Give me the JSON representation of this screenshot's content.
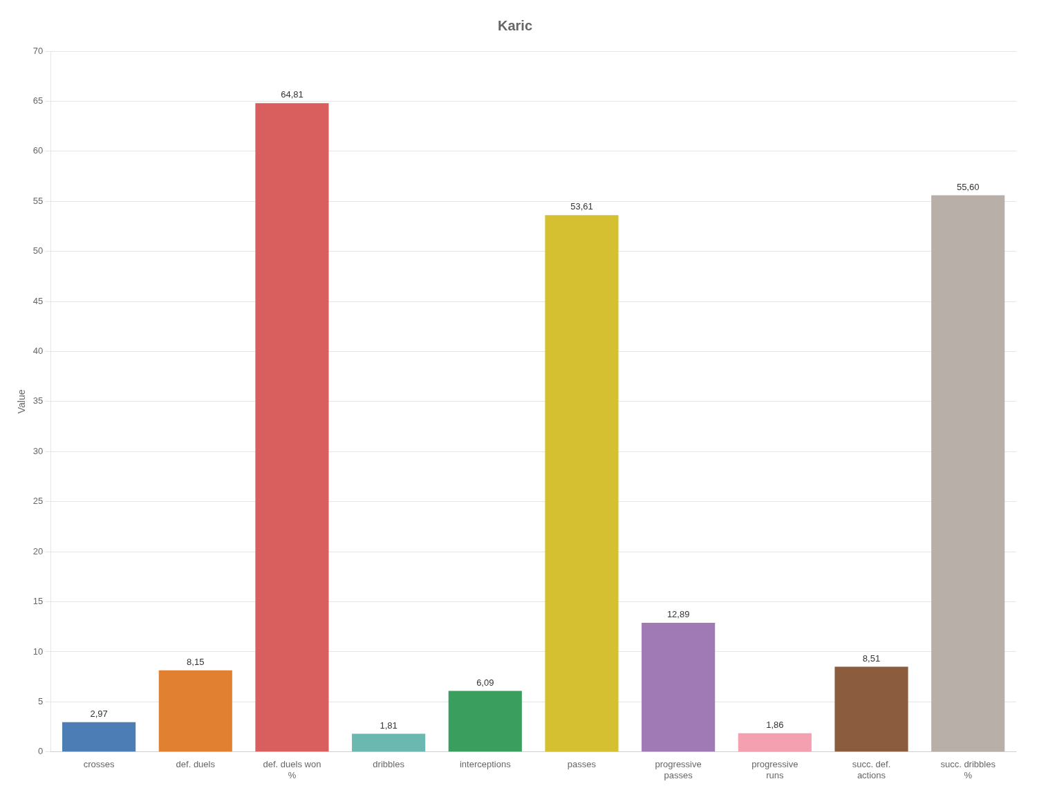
{
  "chart_data": {
    "type": "bar",
    "title": "Karic",
    "ylabel": "Value",
    "categories": [
      "crosses",
      "def. duels",
      "def. duels won\n%",
      "dribbles",
      "interceptions",
      "passes",
      "progressive\npasses",
      "progressive\nruns",
      "succ. def.\nactions",
      "succ. dribbles\n%"
    ],
    "values": [
      2.97,
      8.15,
      64.81,
      1.81,
      6.09,
      53.61,
      12.89,
      1.86,
      8.51,
      55.6
    ],
    "value_labels": [
      "2,97",
      "8,15",
      "64,81",
      "1,81",
      "6,09",
      "53,61",
      "12,89",
      "1,86",
      "8,51",
      "55,60"
    ],
    "colors": [
      "#4d7db5",
      "#e08030",
      "#d95f5f",
      "#6bb8b0",
      "#3a9e5f",
      "#d4c030",
      "#a07ab5",
      "#f4a0b0",
      "#8b5c3e",
      "#b8b0a8"
    ],
    "ylim": [
      0,
      70
    ],
    "yticks": [
      0,
      5,
      10,
      15,
      20,
      25,
      30,
      35,
      40,
      45,
      50,
      55,
      60,
      65,
      70
    ],
    "grid": true,
    "data_labels": true
  }
}
